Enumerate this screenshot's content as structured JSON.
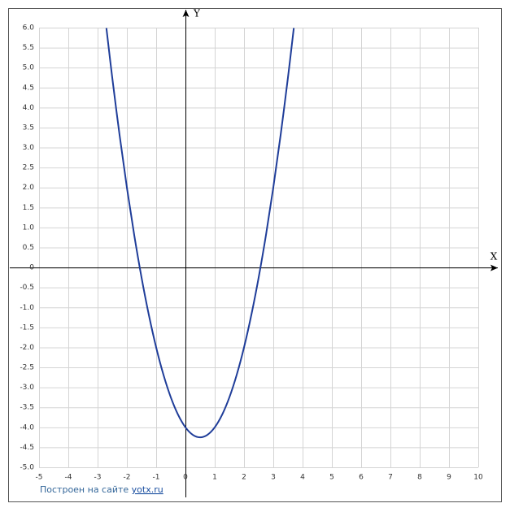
{
  "chart_data": {
    "type": "line",
    "xlabel": "X",
    "ylabel": "Y",
    "x": [
      -2.7,
      -2.5,
      -2.25,
      -2,
      -1.75,
      -1.5,
      -1.25,
      -1,
      -0.75,
      -0.5,
      -0.25,
      0,
      0.25,
      0.5,
      0.75,
      1,
      1.25,
      1.5,
      1.75,
      2,
      2.25,
      2.5,
      2.75,
      3,
      3.25,
      3.5,
      3.7
    ],
    "series": [
      {
        "color": "#1f3d99",
        "values": [
          5.99,
          4.75,
          3.3125,
          2,
          0.8125,
          -0.25,
          -1.1875,
          -2,
          -2.6875,
          -3.25,
          -3.6875,
          -4,
          -4.1875,
          -4.25,
          -4.1875,
          -4,
          -3.6875,
          -3.25,
          -2.6875,
          -2,
          -1.1875,
          -0.25,
          0.8125,
          2,
          3.3125,
          4.75,
          5.99
        ]
      }
    ],
    "xlim": [
      -5,
      10
    ],
    "ylim": [
      -5,
      6
    ],
    "xticks": [
      -5,
      -4,
      -3,
      -2,
      -1,
      0,
      1,
      2,
      3,
      4,
      5,
      6,
      7,
      8,
      9,
      10
    ],
    "yticks": [
      {
        "value": 6,
        "label": "6.0"
      },
      5.5,
      {
        "value": 5,
        "label": "5.0"
      },
      4.5,
      {
        "value": 4,
        "label": "4.0"
      },
      3.5,
      {
        "value": 3,
        "label": "3.0"
      },
      2.5,
      {
        "value": 2,
        "label": "2.0"
      },
      1.5,
      {
        "value": 1,
        "label": "1.0"
      },
      0.5,
      0,
      -0.5,
      {
        "value": -1,
        "label": "-1.0"
      },
      -1.5,
      {
        "value": -2,
        "label": "-2.0"
      },
      -2.5,
      {
        "value": -3,
        "label": "-3.0"
      },
      -3.5,
      {
        "value": -4,
        "label": "-4.0"
      },
      -4.5,
      {
        "value": -5,
        "label": "-5.0"
      }
    ],
    "grid": true,
    "footer_text": "Построен на сайте",
    "footer_link": "yotx.ru"
  }
}
